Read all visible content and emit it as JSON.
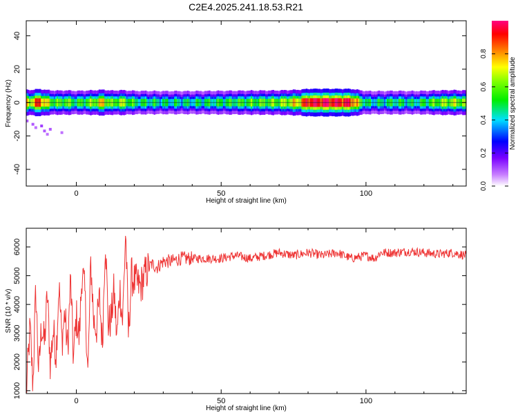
{
  "title": "C2E4.2025.241.18.53.R21",
  "chart_data": [
    {
      "type": "heatmap",
      "title": "C2E4.2025.241.18.53.R21",
      "xlabel": "Height of straight line (km)",
      "ylabel": "Frequency (Hz)",
      "xlim": [
        -17.3,
        134.6
      ],
      "ylim": [
        -50,
        49
      ],
      "x_ticks": [
        "0",
        "50",
        "100"
      ],
      "x_tick_values": [
        0,
        50,
        100
      ],
      "y_ticks": [
        "40",
        "20",
        "0",
        "-20",
        "-40"
      ],
      "y_tick_values": [
        40,
        20,
        0,
        -20,
        -40
      ],
      "colorbar": {
        "label": "Normalized spectral amplitude",
        "range": [
          0,
          1
        ],
        "ticks": [
          "0.0",
          "0.2",
          "0.4",
          "0.6",
          "0.8"
        ],
        "tick_values": [
          0.0,
          0.2,
          0.4,
          0.6,
          0.8
        ]
      },
      "band_amplitude": {
        "x": [
          -16,
          -13,
          -10,
          -7,
          -4,
          0,
          5,
          9,
          12,
          15,
          20,
          30,
          40,
          50,
          60,
          70,
          77,
          80,
          85,
          90,
          95,
          98,
          100,
          105,
          110,
          115,
          120,
          125,
          130,
          134
        ],
        "values": [
          0.7,
          0.9,
          0.65,
          0.55,
          0.6,
          0.5,
          0.6,
          0.75,
          0.55,
          0.65,
          0.5,
          0.45,
          0.45,
          0.5,
          0.55,
          0.6,
          0.75,
          0.95,
          0.95,
          0.95,
          0.9,
          0.6,
          0.45,
          0.45,
          0.5,
          0.45,
          0.5,
          0.6,
          0.65,
          0.6
        ]
      },
      "scatter_noise": [
        {
          "x": -17,
          "y": -11,
          "v": 0.1
        },
        {
          "x": -15,
          "y": -13,
          "v": 0.1
        },
        {
          "x": -14,
          "y": -15,
          "v": 0.08
        },
        {
          "x": -12,
          "y": -14,
          "v": 0.12
        },
        {
          "x": -11,
          "y": -17,
          "v": 0.1
        },
        {
          "x": -10,
          "y": -19,
          "v": 0.08
        },
        {
          "x": -9,
          "y": -16,
          "v": 0.1
        },
        {
          "x": -5,
          "y": -18,
          "v": 0.08
        }
      ]
    },
    {
      "type": "line",
      "xlabel": "Height of straight line (km)",
      "ylabel": "SNR (10 * v/v)",
      "xlim": [
        -17.3,
        134.6
      ],
      "ylim": [
        900,
        6650
      ],
      "x_ticks": [
        "0",
        "50",
        "100"
      ],
      "x_tick_values": [
        0,
        50,
        100
      ],
      "y_ticks": [
        "1000",
        "2000",
        "3000",
        "4000",
        "5000",
        "6000"
      ],
      "y_tick_values": [
        1000,
        2000,
        3000,
        4000,
        5000,
        6000
      ],
      "color": "#ee3333",
      "x": [
        -17.3,
        -16,
        -15,
        -14,
        -13,
        -12,
        -11,
        -10,
        -9,
        -8,
        -7,
        -6,
        -5,
        -4,
        -3,
        -2,
        -1,
        0,
        1,
        2,
        3,
        4,
        5,
        6,
        7,
        8,
        9,
        10,
        11,
        12,
        13,
        14,
        15,
        16,
        17,
        18,
        19,
        20,
        22,
        24,
        26,
        28,
        30,
        33,
        36,
        40,
        45,
        50,
        55,
        60,
        65,
        70,
        75,
        80,
        85,
        90,
        95,
        100,
        103,
        105,
        110,
        115,
        120,
        125,
        130,
        134.6
      ],
      "values": [
        900,
        3200,
        1200,
        4500,
        1600,
        3300,
        2600,
        4400,
        1900,
        3100,
        2300,
        4700,
        2700,
        3700,
        2400,
        4900,
        2100,
        3600,
        2800,
        5200,
        4300,
        1500,
        5500,
        3400,
        3200,
        4200,
        2600,
        6400,
        3300,
        3500,
        4500,
        2800,
        4600,
        3400,
        6600,
        2900,
        5000,
        4800,
        4600,
        5100,
        5400,
        5300,
        5500,
        5500,
        5600,
        5600,
        5600,
        5600,
        5700,
        5600,
        5700,
        5800,
        5700,
        5800,
        5700,
        5800,
        5600,
        5700,
        5600,
        5800,
        5800,
        5850,
        5800,
        5750,
        5800,
        5700
      ]
    }
  ]
}
